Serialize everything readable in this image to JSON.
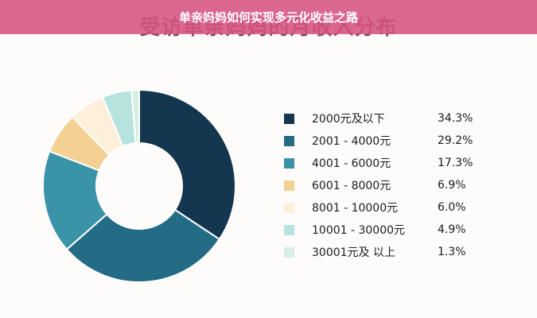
{
  "banner": {
    "title": "单亲妈妈如何实现多元化收益之路"
  },
  "chart_data": {
    "type": "pie",
    "title": "受访单亲妈妈的月收入分布",
    "legend_position": "right",
    "slices": [
      {
        "label": "2000元及以下",
        "value": 34.3,
        "value_label": "34.3%",
        "color": "#14364f"
      },
      {
        "label": "2001 - 4000元",
        "value": 29.2,
        "value_label": "29.2%",
        "color": "#246c85"
      },
      {
        "label": "4001  -  6000元",
        "value": 17.3,
        "value_label": "17.3%",
        "color": "#3a93a7"
      },
      {
        "label": "6001  -  8000元",
        "value": 6.9,
        "value_label": "6.9%",
        "color": "#f3d192"
      },
      {
        "label": "8001 - 10000元",
        "value": 6.0,
        "value_label": "6.0%",
        "color": "#fdefd9"
      },
      {
        "label": "10001 - 30000元",
        "value": 4.9,
        "value_label": "4.9%",
        "color": "#b7e3de"
      },
      {
        "label": "30001元及 以上",
        "value": 1.3,
        "value_label": "1.3%",
        "color": "#d8efe3"
      }
    ]
  }
}
